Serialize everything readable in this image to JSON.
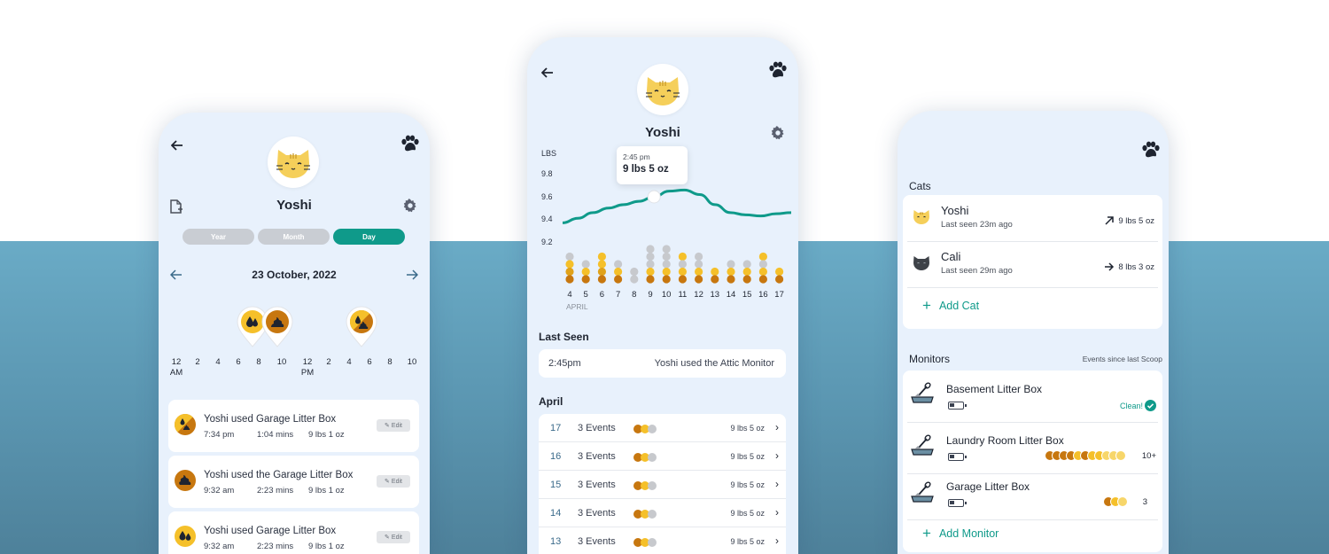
{
  "colors": {
    "accent": "#0f9a8a",
    "poop": "#c7770f",
    "pee": "#f5c02a",
    "light_yellow": "#f7d66a",
    "grey_dot": "#c7c9cd",
    "phone_bg": "#e8f1fc",
    "band": "#5a95b0"
  },
  "left": {
    "cat_name": "Yoshi",
    "segments": [
      {
        "label": "Year",
        "active": false
      },
      {
        "label": "Month",
        "active": false
      },
      {
        "label": "Day",
        "active": true
      }
    ],
    "date": "23 October, 2022",
    "timeline_labels": [
      {
        "main": "12",
        "sub": "AM"
      },
      {
        "main": "2",
        "sub": ""
      },
      {
        "main": "4",
        "sub": ""
      },
      {
        "main": "6",
        "sub": ""
      },
      {
        "main": "8",
        "sub": ""
      },
      {
        "main": "10",
        "sub": ""
      },
      {
        "main": "12",
        "sub": "PM"
      },
      {
        "main": "2",
        "sub": ""
      },
      {
        "main": "4",
        "sub": ""
      },
      {
        "main": "6",
        "sub": ""
      },
      {
        "main": "8",
        "sub": ""
      },
      {
        "main": "10",
        "sub": ""
      }
    ],
    "pins": [
      {
        "type": "pee",
        "icon": "drops-icon"
      },
      {
        "type": "poop",
        "icon": "poop-icon"
      },
      {
        "type": "both",
        "icon": "drops-poop-icon"
      }
    ],
    "events": [
      {
        "title": "Yoshi used Garage Litter Box",
        "time": "7:34 pm",
        "duration": "1:04 mins",
        "weight": "9 lbs 1 oz",
        "edit": "Edit",
        "type": "both"
      },
      {
        "title": "Yoshi used the Garage Litter Box",
        "time": "9:32 am",
        "duration": "2:23 mins",
        "weight": "9 lbs 1 oz",
        "edit": "Edit",
        "type": "poop"
      },
      {
        "title": "Yoshi used Garage Litter Box",
        "time": "9:32 am",
        "duration": "2:23 mins",
        "weight": "9 lbs 1 oz",
        "edit": "Edit",
        "type": "pee"
      }
    ]
  },
  "mid": {
    "cat_name": "Yoshi",
    "weight_axis": {
      "unit": "LBS",
      "ticks": [
        "9.8",
        "9.6",
        "9.4",
        "9.2"
      ]
    },
    "tooltip": {
      "time": "2:45 pm",
      "value": "9 lbs 5 oz"
    },
    "month_label": "APRIL",
    "days": [
      {
        "day": "4",
        "dots": [
          "grey",
          "yellow",
          "dark",
          "poop"
        ]
      },
      {
        "day": "5",
        "dots": [
          "grey",
          "yellow",
          "poop"
        ]
      },
      {
        "day": "6",
        "dots": [
          "yellow",
          "yellow",
          "dark",
          "poop"
        ]
      },
      {
        "day": "7",
        "dots": [
          "grey",
          "yellow",
          "poop"
        ]
      },
      {
        "day": "8",
        "dots": [
          "grey",
          "grey"
        ]
      },
      {
        "day": "9",
        "dots": [
          "grey",
          "grey",
          "grey",
          "yellow",
          "poop"
        ]
      },
      {
        "day": "10",
        "dots": [
          "grey",
          "grey",
          "grey",
          "yellow",
          "poop"
        ]
      },
      {
        "day": "11",
        "dots": [
          "yellow",
          "grey",
          "yellow",
          "poop"
        ]
      },
      {
        "day": "12",
        "dots": [
          "grey",
          "grey",
          "yellow",
          "poop"
        ]
      },
      {
        "day": "13",
        "dots": [
          "yellow",
          "poop"
        ]
      },
      {
        "day": "14",
        "dots": [
          "grey",
          "yellow",
          "poop"
        ]
      },
      {
        "day": "15",
        "dots": [
          "grey",
          "yellow",
          "poop"
        ]
      },
      {
        "day": "16",
        "dots": [
          "yellow",
          "grey",
          "yellow",
          "poop"
        ]
      },
      {
        "day": "17",
        "dots": [
          "yellow",
          "poop"
        ]
      }
    ],
    "weight_line": [
      9.37,
      9.41,
      9.46,
      9.5,
      9.53,
      9.56,
      9.6,
      9.65,
      9.66,
      9.62,
      9.53,
      9.46,
      9.44,
      9.43,
      9.45,
      9.46
    ],
    "last_seen": {
      "title": "Last Seen",
      "time": "2:45pm",
      "text": "Yoshi used the Attic Monitor"
    },
    "april": {
      "title": "April",
      "rows": [
        {
          "day": "17",
          "events": "3 Events",
          "weight": "9 lbs 5 oz"
        },
        {
          "day": "16",
          "events": "3 Events",
          "weight": "9 lbs 5 oz"
        },
        {
          "day": "15",
          "events": "3 Events",
          "weight": "9 lbs 5 oz"
        },
        {
          "day": "14",
          "events": "3 Events",
          "weight": "9 lbs 5 oz"
        },
        {
          "day": "13",
          "events": "3 Events",
          "weight": "9 lbs 5 oz"
        }
      ]
    }
  },
  "right": {
    "cats_title": "Cats",
    "cats": [
      {
        "name": "Yoshi",
        "last_seen": "Last seen 23m ago",
        "trend": "up-right-arrow-icon",
        "weight": "9 lbs 5 oz"
      },
      {
        "name": "Cali",
        "last_seen": "Last seen 29m ago",
        "trend": "right-arrow-icon",
        "weight": "8 lbs 3 oz"
      }
    ],
    "add_cat": "Add Cat",
    "monitors_title": "Monitors",
    "monitors_sub": "Events since last Scoop",
    "monitors": [
      {
        "name": "Basement Litter Box",
        "status": "Clean!",
        "count": ""
      },
      {
        "name": "Laundry Room Litter Box",
        "status": "",
        "count": "10+"
      },
      {
        "name": "Garage Litter Box",
        "status": "",
        "count": "3"
      }
    ],
    "add_monitor": "Add Monitor"
  }
}
